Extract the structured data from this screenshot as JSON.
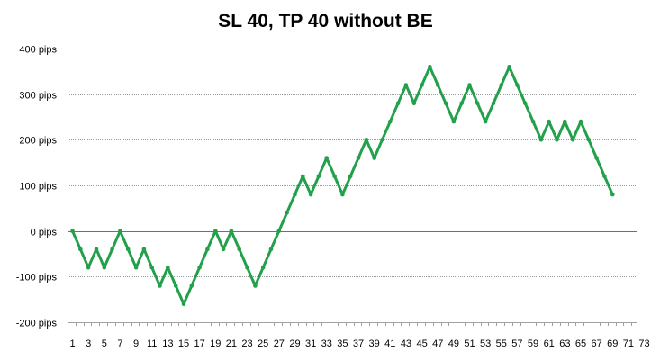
{
  "chart_data": {
    "type": "line",
    "title": "SL 40, TP 40 without BE",
    "xlabel": "",
    "ylabel": "",
    "ylim": [
      -200,
      400
    ],
    "xlim": [
      1,
      73
    ],
    "y_ticks": [
      400,
      300,
      200,
      100,
      0,
      -100,
      -200
    ],
    "y_tick_labels": [
      "400  pips",
      "300  pips",
      "200  pips",
      "100  pips",
      "0  pips",
      "-100  pips",
      "-200  pips"
    ],
    "x_tick_labels": [
      "1",
      "3",
      "5",
      "7",
      "9",
      "11",
      "13",
      "15",
      "17",
      "19",
      "21",
      "23",
      "25",
      "27",
      "29",
      "31",
      "33",
      "35",
      "37",
      "39",
      "41",
      "43",
      "45",
      "47",
      "49",
      "51",
      "53",
      "55",
      "57",
      "59",
      "61",
      "63",
      "65",
      "67",
      "69",
      "71",
      "73"
    ],
    "grid": true,
    "legend": "none",
    "colors": {
      "line": "#22a04b",
      "zero_line": "#c0504d",
      "grid": "#9a9a9a",
      "axis": "#a0a0a0"
    },
    "series": [
      {
        "name": "",
        "x": [
          1,
          2,
          3,
          4,
          5,
          6,
          7,
          8,
          9,
          10,
          11,
          12,
          13,
          14,
          15,
          16,
          17,
          18,
          19,
          20,
          21,
          22,
          23,
          24,
          25,
          26,
          27,
          28,
          29,
          30,
          31,
          32,
          33,
          34,
          35,
          36,
          37,
          38,
          39,
          40,
          41,
          42,
          43,
          44,
          45,
          46,
          47,
          48,
          49,
          50,
          51,
          52,
          53,
          54,
          55,
          56,
          57,
          58,
          59,
          60,
          61,
          62,
          63,
          64,
          65,
          66,
          67,
          68,
          69
        ],
        "values": [
          0,
          -40,
          -80,
          -40,
          -80,
          -40,
          0,
          -40,
          -80,
          -40,
          -80,
          -120,
          -80,
          -120,
          -160,
          -120,
          -80,
          -40,
          0,
          -40,
          0,
          -40,
          -80,
          -120,
          -80,
          -40,
          0,
          40,
          80,
          120,
          80,
          120,
          160,
          120,
          80,
          120,
          160,
          200,
          160,
          200,
          240,
          280,
          320,
          280,
          320,
          360,
          320,
          280,
          240,
          280,
          320,
          280,
          240,
          280,
          320,
          360,
          320,
          280,
          240,
          200,
          240,
          200,
          240,
          200,
          240,
          200,
          160,
          120,
          80
        ]
      }
    ]
  }
}
